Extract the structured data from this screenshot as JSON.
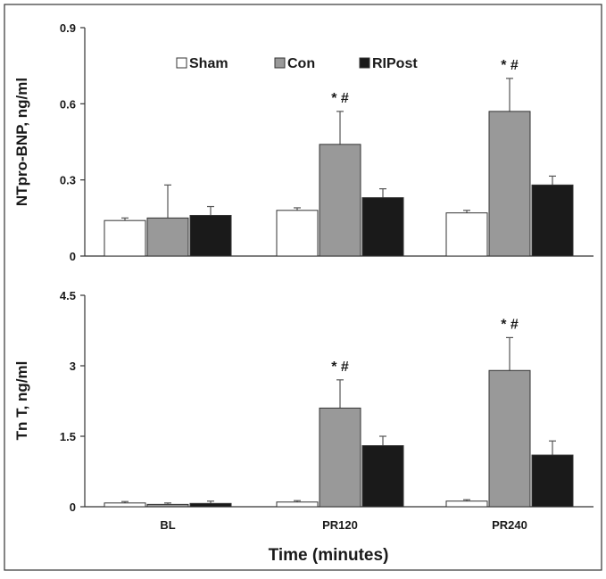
{
  "figure": {
    "xlabel": "Time (minutes)",
    "legend": [
      "Sham",
      "Con",
      "RIPost"
    ]
  },
  "colors": {
    "Sham": "#ffffff",
    "Con": "#999999",
    "RIPost": "#1a1a1a",
    "frame": "#333333"
  },
  "chart_data": [
    {
      "type": "bar",
      "ylabel": "NTpro-BNP, ng/ml",
      "ylim": [
        0,
        0.9
      ],
      "yticks": [
        "0",
        "0.3",
        "0.6",
        "0.9"
      ],
      "ytick_values": [
        0,
        0.3,
        0.6,
        0.9
      ],
      "categories": [
        "BL",
        "PR120",
        "PR240"
      ],
      "legend_placement": "top",
      "series": [
        {
          "name": "Sham",
          "values": [
            0.14,
            0.18,
            0.17
          ],
          "errors": [
            0.01,
            0.01,
            0.01
          ]
        },
        {
          "name": "Con",
          "values": [
            0.15,
            0.44,
            0.57
          ],
          "errors": [
            0.13,
            0.13,
            0.13
          ]
        },
        {
          "name": "RIPost",
          "values": [
            0.16,
            0.23,
            0.28
          ],
          "errors": [
            0.035,
            0.035,
            0.035
          ]
        }
      ],
      "annotations": [
        {
          "category": "PR120",
          "series": "Con",
          "text": "* #"
        },
        {
          "category": "PR240",
          "series": "Con",
          "text": "* #"
        }
      ]
    },
    {
      "type": "bar",
      "ylabel": "Tn T, ng/ml",
      "ylim": [
        0,
        4.5
      ],
      "yticks": [
        "0",
        "1.5",
        "3",
        "4.5"
      ],
      "ytick_values": [
        0,
        1.5,
        3,
        4.5
      ],
      "categories": [
        "BL",
        "PR120",
        "PR240"
      ],
      "series": [
        {
          "name": "Sham",
          "values": [
            0.08,
            0.1,
            0.12
          ],
          "errors": [
            0.03,
            0.03,
            0.03
          ]
        },
        {
          "name": "Con",
          "values": [
            0.05,
            2.1,
            2.9
          ],
          "errors": [
            0.03,
            0.6,
            0.7
          ]
        },
        {
          "name": "RIPost",
          "values": [
            0.07,
            1.3,
            1.1
          ],
          "errors": [
            0.05,
            0.2,
            0.3
          ]
        }
      ],
      "annotations": [
        {
          "category": "PR120",
          "series": "Con",
          "text": "* #"
        },
        {
          "category": "PR240",
          "series": "Con",
          "text": "* #"
        }
      ]
    }
  ]
}
